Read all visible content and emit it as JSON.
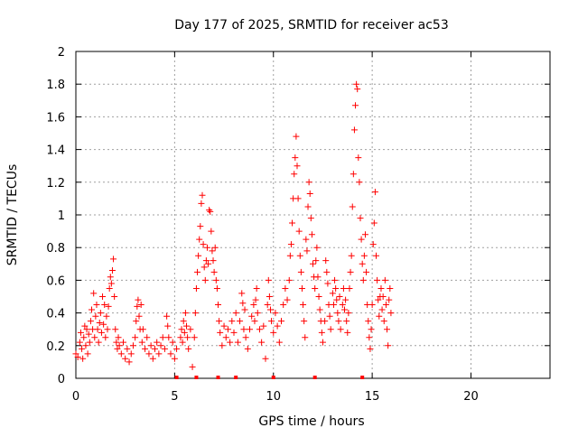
{
  "chart_data": {
    "type": "scatter",
    "title": "Day 177 of 2025, SRMTID for receiver ac53",
    "xlabel": "GPS time / hours",
    "ylabel": "SRMTID / TECUs",
    "xlim": [
      0,
      24
    ],
    "ylim": [
      0,
      2
    ],
    "xticks": [
      0,
      5,
      10,
      15,
      20
    ],
    "xtick_labels": [
      "0",
      "5",
      "10",
      "15",
      "20"
    ],
    "yticks": [
      0,
      0.2,
      0.4,
      0.6,
      0.8,
      1,
      1.2,
      1.4,
      1.6,
      1.8,
      2
    ],
    "ytick_labels": [
      "0",
      "0.2",
      "0.4",
      "0.6",
      "0.8",
      "1",
      "1.2",
      "1.4",
      "1.6",
      "1.8",
      "2"
    ],
    "grid": true,
    "marker": "+",
    "color": "#ff0000",
    "series": [
      {
        "name": "SRMTID",
        "points": [
          [
            0.0,
            0.15
          ],
          [
            0.1,
            0.13
          ],
          [
            0.2,
            0.22
          ],
          [
            0.25,
            0.28
          ],
          [
            0.3,
            0.18
          ],
          [
            0.35,
            0.12
          ],
          [
            0.4,
            0.25
          ],
          [
            0.45,
            0.32
          ],
          [
            0.5,
            0.2
          ],
          [
            0.55,
            0.3
          ],
          [
            0.6,
            0.15
          ],
          [
            0.65,
            0.27
          ],
          [
            0.7,
            0.22
          ],
          [
            0.75,
            0.35
          ],
          [
            0.8,
            0.42
          ],
          [
            0.85,
            0.3
          ],
          [
            0.9,
            0.52
          ],
          [
            0.95,
            0.25
          ],
          [
            1.0,
            0.38
          ],
          [
            1.05,
            0.45
          ],
          [
            1.1,
            0.3
          ],
          [
            1.15,
            0.22
          ],
          [
            1.2,
            0.34
          ],
          [
            1.25,
            0.4
          ],
          [
            1.3,
            0.28
          ],
          [
            1.35,
            0.5
          ],
          [
            1.4,
            0.33
          ],
          [
            1.45,
            0.45
          ],
          [
            1.5,
            0.25
          ],
          [
            1.55,
            0.38
          ],
          [
            1.6,
            0.3
          ],
          [
            1.65,
            0.44
          ],
          [
            1.7,
            0.55
          ],
          [
            1.75,
            0.62
          ],
          [
            1.8,
            0.58
          ],
          [
            1.85,
            0.66
          ],
          [
            1.9,
            0.73
          ],
          [
            1.95,
            0.5
          ],
          [
            2.0,
            0.3
          ],
          [
            2.05,
            0.22
          ],
          [
            2.1,
            0.18
          ],
          [
            2.15,
            0.25
          ],
          [
            2.2,
            0.2
          ],
          [
            2.3,
            0.15
          ],
          [
            2.4,
            0.22
          ],
          [
            2.5,
            0.12
          ],
          [
            2.6,
            0.18
          ],
          [
            2.7,
            0.1
          ],
          [
            2.8,
            0.15
          ],
          [
            2.9,
            0.2
          ],
          [
            3.0,
            0.25
          ],
          [
            3.05,
            0.35
          ],
          [
            3.1,
            0.44
          ],
          [
            3.15,
            0.48
          ],
          [
            3.2,
            0.38
          ],
          [
            3.25,
            0.3
          ],
          [
            3.3,
            0.45
          ],
          [
            3.35,
            0.22
          ],
          [
            3.4,
            0.3
          ],
          [
            3.5,
            0.18
          ],
          [
            3.6,
            0.25
          ],
          [
            3.7,
            0.15
          ],
          [
            3.8,
            0.2
          ],
          [
            3.9,
            0.12
          ],
          [
            4.0,
            0.18
          ],
          [
            4.1,
            0.22
          ],
          [
            4.2,
            0.15
          ],
          [
            4.3,
            0.2
          ],
          [
            4.4,
            0.25
          ],
          [
            4.5,
            0.18
          ],
          [
            4.6,
            0.38
          ],
          [
            4.65,
            0.32
          ],
          [
            4.7,
            0.25
          ],
          [
            4.8,
            0.15
          ],
          [
            4.9,
            0.22
          ],
          [
            5.0,
            0.12
          ],
          [
            5.1,
            0.18
          ],
          [
            5.3,
            0.25
          ],
          [
            5.35,
            0.3
          ],
          [
            5.4,
            0.22
          ],
          [
            5.45,
            0.35
          ],
          [
            5.5,
            0.28
          ],
          [
            5.55,
            0.4
          ],
          [
            5.6,
            0.32
          ],
          [
            5.65,
            0.25
          ],
          [
            5.7,
            0.18
          ],
          [
            5.8,
            0.3
          ],
          [
            5.9,
            0.07
          ],
          [
            6.0,
            0.25
          ],
          [
            6.05,
            0.4
          ],
          [
            6.1,
            0.55
          ],
          [
            6.15,
            0.65
          ],
          [
            6.2,
            0.75
          ],
          [
            6.25,
            0.85
          ],
          [
            6.3,
            0.93
          ],
          [
            6.35,
            1.07
          ],
          [
            6.4,
            1.12
          ],
          [
            6.45,
            0.82
          ],
          [
            6.5,
            0.68
          ],
          [
            6.55,
            0.6
          ],
          [
            6.6,
            0.72
          ],
          [
            6.65,
            0.8
          ],
          [
            6.7,
            0.7
          ],
          [
            6.75,
            1.03
          ],
          [
            6.8,
            1.02
          ],
          [
            6.85,
            0.9
          ],
          [
            6.9,
            0.78
          ],
          [
            6.95,
            0.72
          ],
          [
            7.0,
            0.65
          ],
          [
            7.05,
            0.8
          ],
          [
            7.1,
            0.6
          ],
          [
            7.15,
            0.55
          ],
          [
            7.2,
            0.45
          ],
          [
            7.25,
            0.35
          ],
          [
            7.3,
            0.28
          ],
          [
            7.4,
            0.2
          ],
          [
            7.5,
            0.32
          ],
          [
            7.6,
            0.25
          ],
          [
            7.7,
            0.3
          ],
          [
            7.8,
            0.22
          ],
          [
            7.9,
            0.35
          ],
          [
            8.0,
            0.28
          ],
          [
            8.1,
            0.4
          ],
          [
            8.2,
            0.22
          ],
          [
            8.3,
            0.35
          ],
          [
            8.4,
            0.52
          ],
          [
            8.45,
            0.46
          ],
          [
            8.5,
            0.3
          ],
          [
            8.55,
            0.42
          ],
          [
            8.6,
            0.25
          ],
          [
            8.7,
            0.18
          ],
          [
            8.8,
            0.3
          ],
          [
            8.9,
            0.38
          ],
          [
            9.0,
            0.45
          ],
          [
            9.05,
            0.35
          ],
          [
            9.1,
            0.48
          ],
          [
            9.15,
            0.55
          ],
          [
            9.2,
            0.4
          ],
          [
            9.3,
            0.3
          ],
          [
            9.4,
            0.22
          ],
          [
            9.5,
            0.32
          ],
          [
            9.6,
            0.12
          ],
          [
            9.7,
            0.45
          ],
          [
            9.75,
            0.6
          ],
          [
            9.8,
            0.5
          ],
          [
            9.85,
            0.42
          ],
          [
            9.9,
            0.35
          ],
          [
            10.0,
            0.28
          ],
          [
            10.1,
            0.4
          ],
          [
            10.2,
            0.32
          ],
          [
            10.3,
            0.22
          ],
          [
            10.4,
            0.35
          ],
          [
            10.5,
            0.45
          ],
          [
            10.6,
            0.55
          ],
          [
            10.7,
            0.48
          ],
          [
            10.8,
            0.6
          ],
          [
            10.85,
            0.75
          ],
          [
            10.9,
            0.82
          ],
          [
            10.95,
            0.95
          ],
          [
            11.0,
            1.1
          ],
          [
            11.05,
            1.25
          ],
          [
            11.1,
            1.35
          ],
          [
            11.15,
            1.48
          ],
          [
            11.2,
            1.3
          ],
          [
            11.25,
            1.1
          ],
          [
            11.3,
            0.9
          ],
          [
            11.35,
            0.75
          ],
          [
            11.4,
            0.65
          ],
          [
            11.45,
            0.55
          ],
          [
            11.5,
            0.45
          ],
          [
            11.55,
            0.35
          ],
          [
            11.6,
            0.25
          ],
          [
            11.65,
            0.85
          ],
          [
            11.7,
            0.78
          ],
          [
            11.75,
            1.05
          ],
          [
            11.8,
            1.2
          ],
          [
            11.85,
            1.13
          ],
          [
            11.9,
            0.98
          ],
          [
            11.95,
            0.88
          ],
          [
            12.0,
            0.7
          ],
          [
            12.05,
            0.62
          ],
          [
            12.1,
            0.55
          ],
          [
            12.15,
            0.72
          ],
          [
            12.2,
            0.8
          ],
          [
            12.25,
            0.62
          ],
          [
            12.3,
            0.5
          ],
          [
            12.35,
            0.42
          ],
          [
            12.4,
            0.35
          ],
          [
            12.45,
            0.28
          ],
          [
            12.5,
            0.22
          ],
          [
            12.6,
            0.35
          ],
          [
            12.65,
            0.72
          ],
          [
            12.7,
            0.65
          ],
          [
            12.75,
            0.58
          ],
          [
            12.8,
            0.45
          ],
          [
            12.85,
            0.38
          ],
          [
            12.9,
            0.3
          ],
          [
            13.0,
            0.52
          ],
          [
            13.05,
            0.45
          ],
          [
            13.1,
            0.6
          ],
          [
            13.15,
            0.55
          ],
          [
            13.2,
            0.48
          ],
          [
            13.25,
            0.4
          ],
          [
            13.3,
            0.35
          ],
          [
            13.35,
            0.5
          ],
          [
            13.4,
            0.3
          ],
          [
            13.5,
            0.45
          ],
          [
            13.55,
            0.55
          ],
          [
            13.6,
            0.42
          ],
          [
            13.65,
            0.48
          ],
          [
            13.7,
            0.35
          ],
          [
            13.75,
            0.28
          ],
          [
            13.8,
            0.4
          ],
          [
            13.85,
            0.55
          ],
          [
            13.9,
            0.65
          ],
          [
            13.95,
            0.75
          ],
          [
            14.0,
            1.05
          ],
          [
            14.05,
            1.25
          ],
          [
            14.1,
            1.52
          ],
          [
            14.15,
            1.67
          ],
          [
            14.2,
            1.8
          ],
          [
            14.25,
            1.77
          ],
          [
            14.3,
            1.35
          ],
          [
            14.35,
            1.2
          ],
          [
            14.4,
            0.98
          ],
          [
            14.45,
            0.85
          ],
          [
            14.5,
            0.7
          ],
          [
            14.55,
            0.6
          ],
          [
            14.6,
            0.75
          ],
          [
            14.65,
            0.88
          ],
          [
            14.7,
            0.65
          ],
          [
            14.75,
            0.45
          ],
          [
            14.8,
            0.35
          ],
          [
            14.85,
            0.25
          ],
          [
            14.9,
            0.18
          ],
          [
            14.95,
            0.3
          ],
          [
            15.0,
            0.45
          ],
          [
            15.05,
            0.82
          ],
          [
            15.1,
            0.95
          ],
          [
            15.15,
            1.14
          ],
          [
            15.2,
            0.75
          ],
          [
            15.25,
            0.6
          ],
          [
            15.3,
            0.48
          ],
          [
            15.35,
            0.38
          ],
          [
            15.4,
            0.5
          ],
          [
            15.45,
            0.55
          ],
          [
            15.5,
            0.42
          ],
          [
            15.55,
            0.5
          ],
          [
            15.6,
            0.35
          ],
          [
            15.65,
            0.6
          ],
          [
            15.7,
            0.45
          ],
          [
            15.75,
            0.3
          ],
          [
            15.8,
            0.2
          ],
          [
            15.85,
            0.48
          ],
          [
            15.9,
            0.55
          ],
          [
            15.95,
            0.4
          ]
        ]
      }
    ],
    "baseline_markers_x": [
      5.1,
      6.1,
      7.2,
      8.1,
      10.0,
      12.1,
      14.5
    ]
  }
}
